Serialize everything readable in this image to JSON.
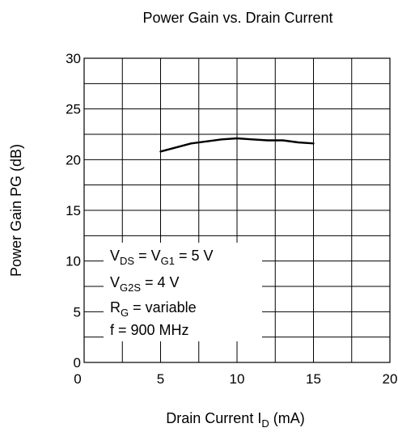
{
  "chart_data": {
    "type": "line",
    "title": "Power Gain vs. Drain  Current",
    "xlabel": {
      "main": "Drain  Current  I",
      "sub": "D",
      "unit": " (mA)"
    },
    "ylabel": "Power Gain  PG  (dB)",
    "xlim": [
      0,
      20
    ],
    "ylim": [
      0,
      30
    ],
    "xticks": [
      "0",
      "5",
      "10",
      "15",
      "20"
    ],
    "yticks": [
      "0",
      "5",
      "10",
      "15",
      "20",
      "25",
      "30"
    ],
    "grid": true,
    "series": [
      {
        "x": [
          5,
          6,
          7,
          8,
          9,
          10,
          11,
          12,
          13,
          14,
          15
        ],
        "y": [
          20.8,
          21.2,
          21.6,
          21.8,
          22.0,
          22.1,
          22.0,
          21.9,
          21.9,
          21.7,
          21.6
        ]
      }
    ],
    "annotations": [
      {
        "main": "V",
        "sub": "DS",
        "rest": "  = V",
        "sub2": "G1",
        "rest2": " = 5 V"
      },
      {
        "main": "V",
        "sub": "G2S",
        "rest": " = 4 V",
        "sub2": "",
        "rest2": ""
      },
      {
        "main": "R",
        "sub": "G",
        "rest": " = variable",
        "sub2": "",
        "rest2": ""
      },
      {
        "main": "f = 900 MHz",
        "sub": "",
        "rest": "",
        "sub2": "",
        "rest2": ""
      }
    ],
    "annotation_placement": "bottom-left"
  }
}
